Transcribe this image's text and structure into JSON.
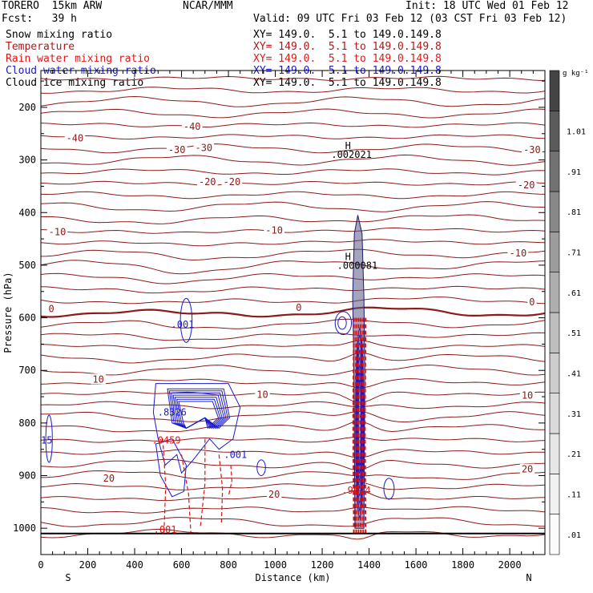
{
  "header": {
    "model": "TORERO  15km ARW",
    "center": "NCAR/MMM",
    "init": "Init: 18 UTC Wed 01 Feb 12",
    "fcst": "Fcst:   39 h",
    "valid": "Valid: 09 UTC Fri 03 Feb 12 (03 CST Fri 03 Feb 12)",
    "fields": [
      {
        "name": "Snow mixing ratio",
        "xy": "XY= 149.0.  5.1 to 149.0.149.8",
        "color": "#000000",
        "xy_color": "#000000"
      },
      {
        "name": "Temperature",
        "xy": "XY= 149.0.  5.1 to 149.0.149.8",
        "color": "#b01818",
        "xy_color": "#b01818"
      },
      {
        "name": "Rain water mixing ratio",
        "xy": "XY= 149.0.  5.1 to 149.0.149.8",
        "color": "#e01818",
        "xy_color": "#e01818"
      },
      {
        "name": "Cloud water mixing ratio",
        "xy": "XY= 149.0.  5.1 to 149.0.149.8",
        "color": "#1a1ad0",
        "xy_color": "#1a1ad0"
      },
      {
        "name": "Cloud ice mixing ratio",
        "xy": "XY= 149.0.  5.1 to 149.0.149.8",
        "color": "#000000",
        "xy_color": "#000000"
      }
    ]
  },
  "chart_data": {
    "type": "contour",
    "xlabel": "Distance (km)",
    "ylabel": "Pressure (hPa)",
    "xlim": [
      0,
      2150
    ],
    "ylim": [
      1050,
      130
    ],
    "x_ticks": [
      0,
      200,
      400,
      600,
      800,
      1000,
      1200,
      1400,
      1600,
      1800,
      2000
    ],
    "y_ticks": [
      200,
      300,
      400,
      500,
      600,
      700,
      800,
      900,
      1000
    ],
    "x_end_labels": {
      "left": "S",
      "right": "N"
    },
    "colorbar": {
      "unit": "g kg⁻¹",
      "ticks": [
        ".01",
        ".11",
        ".21",
        ".31",
        ".41",
        ".51",
        ".61",
        ".71",
        ".81",
        ".91",
        "1.01"
      ],
      "shades": [
        "#fbfbfb",
        "#f1f1f1",
        "#e6e6e6",
        "#dadada",
        "#cdcdcd",
        "#bebebe",
        "#aeaeae",
        "#9c9c9c",
        "#888888",
        "#727272",
        "#5b5b5b",
        "#444444"
      ]
    },
    "colors": {
      "temperature": "#8b1a1a",
      "rain": "#e01010",
      "cloud_water": "#1a1ad0",
      "cloud_ice": "#1a1a6a",
      "axis": "#000000"
    },
    "temperature_labels": [
      {
        "text": "-40",
        "x": 645,
        "p": 237
      },
      {
        "text": "-40",
        "x": 145,
        "p": 259
      },
      {
        "text": "-30",
        "x": 695,
        "p": 277
      },
      {
        "text": "-30",
        "x": 580,
        "p": 281
      },
      {
        "text": "-30",
        "x": 2095,
        "p": 281
      },
      {
        "text": "-20",
        "x": 710,
        "p": 342
      },
      {
        "text": "-20",
        "x": 815,
        "p": 342
      },
      {
        "text": "-20",
        "x": 2070,
        "p": 348
      },
      {
        "text": "-10",
        "x": 70,
        "p": 437
      },
      {
        "text": "-10",
        "x": 995,
        "p": 434
      },
      {
        "text": "-10",
        "x": 2035,
        "p": 477
      },
      {
        "text": "0",
        "x": 45,
        "p": 583
      },
      {
        "text": "0",
        "x": 1100,
        "p": 581
      },
      {
        "text": "0",
        "x": 2095,
        "p": 570
      },
      {
        "text": "10",
        "x": 245,
        "p": 717
      },
      {
        "text": "10",
        "x": 945,
        "p": 746
      },
      {
        "text": "10",
        "x": 2075,
        "p": 748
      },
      {
        "text": "20",
        "x": 290,
        "p": 905
      },
      {
        "text": "20",
        "x": 995,
        "p": 936
      },
      {
        "text": "20",
        "x": 2075,
        "p": 888
      }
    ],
    "markers": [
      {
        "text": "H",
        "x": 1310,
        "p": 273,
        "color": "#000000"
      },
      {
        "text": ".002021",
        "x": 1325,
        "p": 290,
        "color": "#000000"
      },
      {
        "text": "H",
        "x": 1310,
        "p": 484,
        "color": "#000000"
      },
      {
        "text": ".000081",
        "x": 1350,
        "p": 501,
        "color": "#000000"
      },
      {
        "text": ".001",
        "x": 605,
        "p": 613,
        "color": "#1a1ad0"
      },
      {
        "text": ".8326",
        "x": 560,
        "p": 780,
        "color": "#1a1ad0"
      },
      {
        "text": ".0459",
        "x": 535,
        "p": 833,
        "color": "#e01010"
      },
      {
        "text": ".001",
        "x": 830,
        "p": 860,
        "color": "#1a1ad0"
      },
      {
        "text": "15",
        "x": 25,
        "p": 833,
        "color": "#1a1ad0"
      },
      {
        "text": ".9024",
        "x": 1345,
        "p": 928,
        "color": "#e01010"
      },
      {
        "text": ".001",
        "x": 530,
        "p": 1003,
        "color": "#e01010"
      }
    ]
  }
}
